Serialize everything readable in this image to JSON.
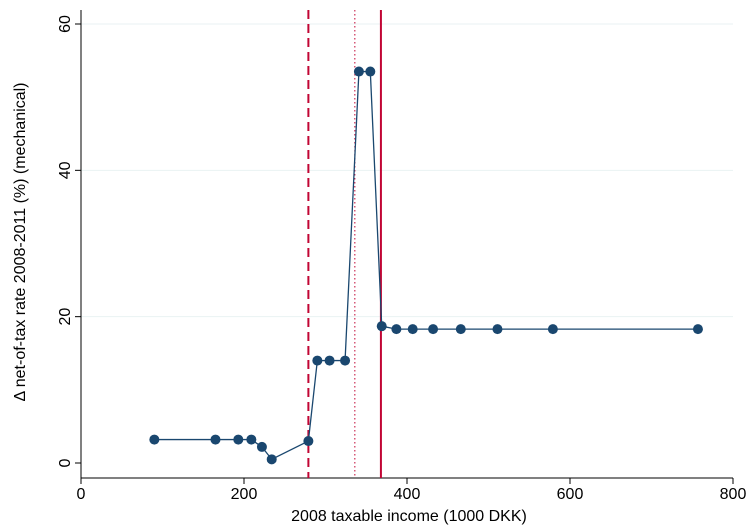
{
  "chart_data": {
    "type": "line",
    "title": "",
    "xlabel": "2008 taxable income (1000 DKK)",
    "ylabel": "Δ net-of-tax rate 2008-2011 (%) (mechanical)",
    "xlim": [
      0,
      800
    ],
    "ylim": [
      0,
      60
    ],
    "xticks": [
      0,
      200,
      400,
      600,
      800
    ],
    "yticks": [
      0,
      20,
      40,
      60
    ],
    "grid": "horizontal",
    "series": [
      {
        "x": [
          90,
          165,
          193,
          209,
          222,
          234,
          279,
          290,
          305,
          324,
          341,
          355,
          369,
          387,
          407,
          432,
          466,
          511,
          579,
          757
        ],
        "y": [
          3.2,
          3.2,
          3.2,
          3.2,
          2.2,
          0.5,
          3.0,
          14.0,
          14.0,
          14.0,
          53.5,
          53.5,
          18.7,
          18.3,
          18.3,
          18.3,
          18.3,
          18.3,
          18.3,
          18.3
        ],
        "color": "#1a476f"
      }
    ],
    "reference_lines": [
      {
        "x": 279,
        "style": "dashed",
        "color": "#c10534"
      },
      {
        "x": 336,
        "style": "dotted",
        "color": "#c10534"
      },
      {
        "x": 368,
        "style": "solid",
        "color": "#c10534"
      }
    ]
  }
}
